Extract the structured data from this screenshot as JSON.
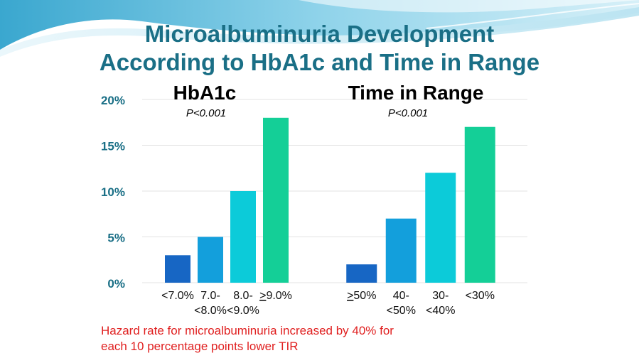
{
  "title": {
    "line1": "Microalbuminuria Development",
    "line2": "According to HbA1c and Time in Range"
  },
  "chart_data": [
    {
      "type": "bar",
      "title": "HbA1c",
      "subtitle": "P<0.001",
      "categories": [
        [
          "<7.0%"
        ],
        [
          "7.0-",
          "<8.0%"
        ],
        [
          "8.0-",
          "<9.0%"
        ],
        [
          ">9.0%"
        ]
      ],
      "values": [
        3,
        5,
        10,
        18
      ],
      "ylim": [
        0,
        20
      ],
      "yticks": [
        "0%",
        "5%",
        "10%",
        "15%",
        "20%"
      ],
      "colors": [
        "#1766c4",
        "#139fdc",
        "#0ccbd9",
        "#14cf97"
      ],
      "grid": true
    },
    {
      "type": "bar",
      "title": "Time in Range",
      "subtitle": "P<0.001",
      "categories": [
        [
          ">50%"
        ],
        [
          "40-",
          "<50%"
        ],
        [
          "30-",
          "<40%"
        ],
        [
          "<30%"
        ]
      ],
      "values": [
        2,
        7,
        12,
        17
      ],
      "ylim": [
        0,
        20
      ],
      "colors": [
        "#1766c4",
        "#139fdc",
        "#0ccbd9",
        "#14cf97"
      ],
      "grid": true
    }
  ],
  "footnote": {
    "line1": "Hazard rate for microalbuminuria increased by 40% for",
    "line2": "each 10 percentage points lower TIR"
  }
}
